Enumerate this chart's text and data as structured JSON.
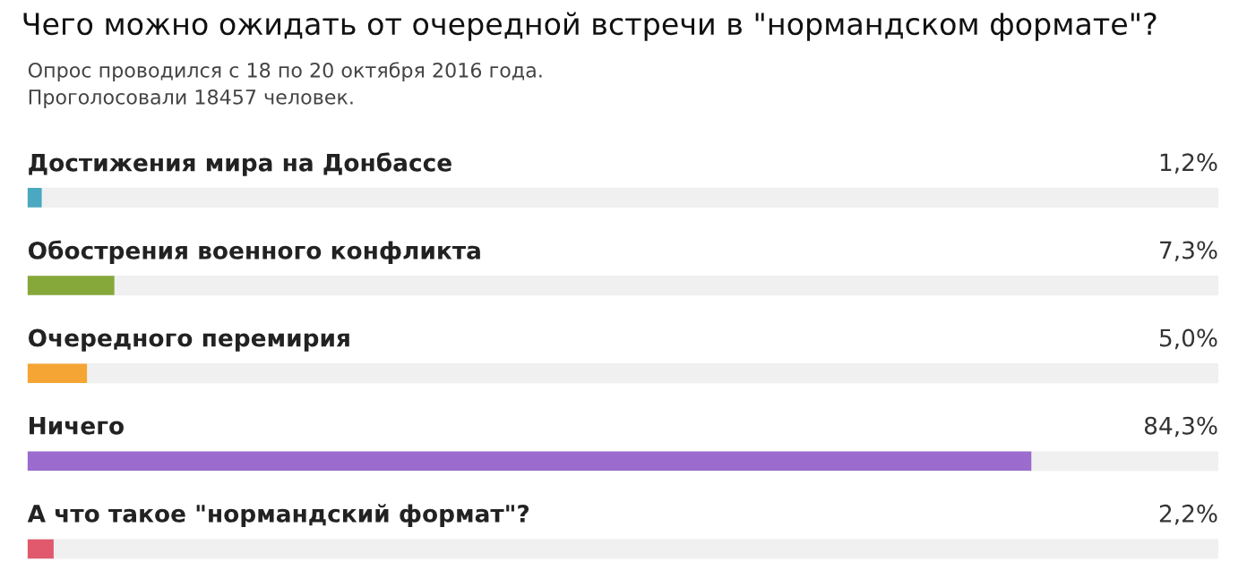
{
  "chart_data": {
    "type": "bar",
    "orientation": "horizontal",
    "title": "Чего можно ожидать от очередной встречи в \"нормандском формате\"?",
    "subtitle": "Опрос проводился с 18 по 20 октября 2016 года.\nПроголосовали 18457 человек.",
    "categories": [
      "Достижения мира на Донбассе",
      "Обострения военного конфликта",
      "Очередного перемирия",
      "Ничего",
      "А что такое \"нормандский формат\"?"
    ],
    "values": [
      1.2,
      7.3,
      5.0,
      84.3,
      2.2
    ],
    "colors": [
      "#4aa8c0",
      "#86a83a",
      "#f5a534",
      "#9b6cce",
      "#e0596c"
    ],
    "value_labels": [
      "1,2%",
      "7,3%",
      "5,0%",
      "84,3%",
      "2,2%"
    ],
    "xlim": [
      0,
      100
    ]
  }
}
